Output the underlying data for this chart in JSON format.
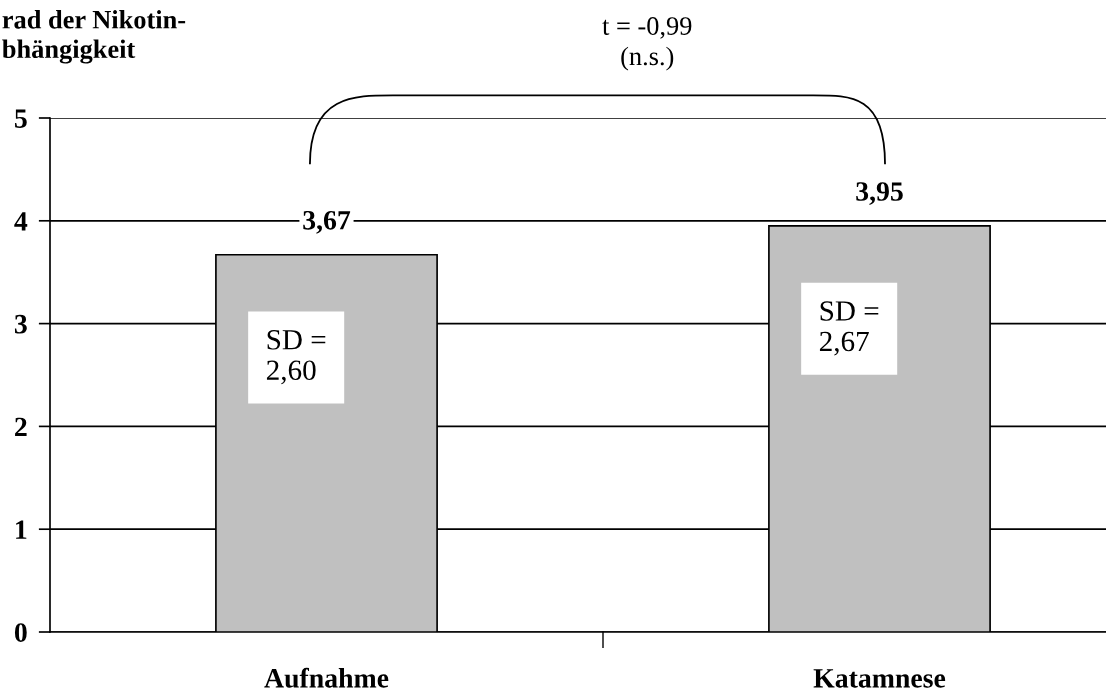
{
  "chart_data": {
    "type": "bar",
    "ylabel": "rad der Nikotin-\nbhängigkeit",
    "categories": [
      "Aufnahme",
      "Katamnese"
    ],
    "values": [
      3.67,
      3.95
    ],
    "value_labels": [
      "3,67",
      "3,95"
    ],
    "color": "#c0c0c0",
    "ylim": [
      0,
      5
    ],
    "yticks": [
      0,
      1,
      2,
      3,
      4,
      5
    ],
    "grid": "y",
    "annotations": [
      "SD =\n2,60",
      "SD =\n2,67",
      "t = -0,99\n(n.s.)"
    ]
  }
}
